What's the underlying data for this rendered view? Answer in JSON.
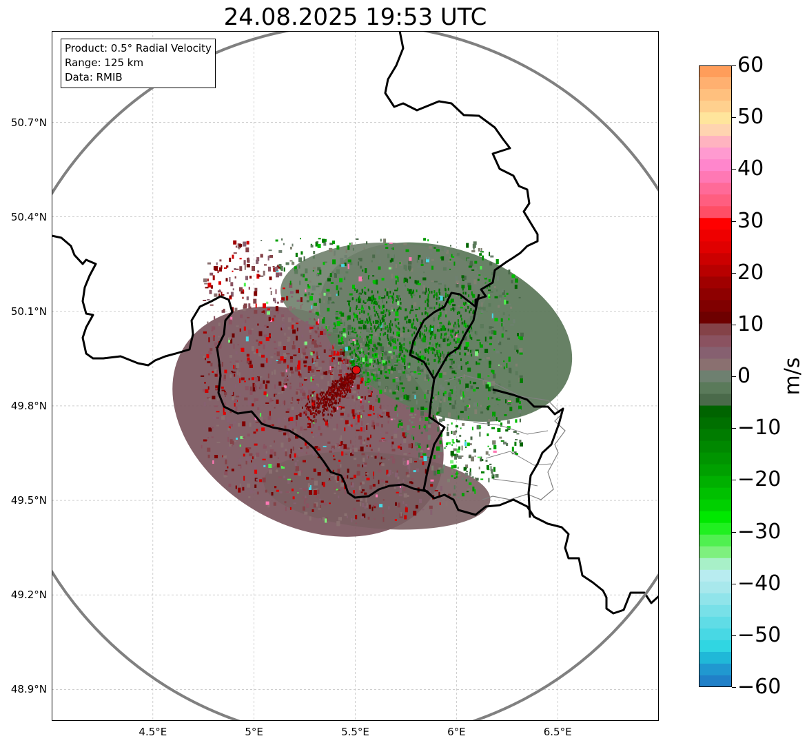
{
  "title": "24.08.2025 19:53 UTC",
  "info_box": {
    "product": "Product: 0.5° Radial Velocity",
    "range": "Range: 125 km",
    "data": "Data: RMIB"
  },
  "map": {
    "lat_ticks": [
      "50.7°N",
      "50.4°N",
      "50.1°N",
      "49.8°N",
      "49.5°N",
      "49.2°N",
      "48.9°N"
    ],
    "lon_ticks": [
      "4.5°E",
      "5°E",
      "5.5°E",
      "6°E",
      "6.5°E"
    ],
    "radar_site": {
      "lat": 49.914,
      "lon": 5.505,
      "marker": "red-circle"
    },
    "range_ring_km": 125,
    "extent": {
      "lon_min": 4.0,
      "lon_max": 7.0,
      "lat_min": 48.8,
      "lat_max": 50.99
    },
    "colors": {
      "range_ring": "#808080",
      "border": "#000000",
      "admin": "#808080",
      "grid": "#b0b0b0"
    }
  },
  "colorbar": {
    "unit": "m/s",
    "min": -60,
    "max": 60,
    "ticks": [
      "60",
      "50",
      "40",
      "30",
      "20",
      "10",
      "0",
      "−10",
      "−20",
      "−30",
      "−40",
      "−50",
      "−60"
    ],
    "colors_top_to_bottom": [
      "#ff9d5a",
      "#ffb070",
      "#ffc07e",
      "#ffd08e",
      "#ffe59c",
      "#ffd4b0",
      "#ffb3c0",
      "#ff9ad0",
      "#ff86cc",
      "#ff78b4",
      "#ff6a98",
      "#ff5e80",
      "#ff4e66",
      "#ff0000",
      "#ee0000",
      "#e00000",
      "#cc0000",
      "#b80000",
      "#a00000",
      "#8e0000",
      "#800000",
      "#6e0000",
      "#844248",
      "#8a5260",
      "#866070",
      "#8a7070",
      "#6e8070",
      "#5a7a5a",
      "#4a6a4a",
      "#006400",
      "#007000",
      "#007c00",
      "#008800",
      "#009400",
      "#00a000",
      "#00b000",
      "#00c000",
      "#00d000",
      "#00e800",
      "#20f020",
      "#50f050",
      "#7ef07e",
      "#a8f0c8",
      "#b8ecf0",
      "#a8e8ec",
      "#90e4ea",
      "#78e0e8",
      "#60dce6",
      "#48d8e4",
      "#30d6e2",
      "#20b8d8",
      "#2098d0",
      "#2080c8"
    ]
  }
}
